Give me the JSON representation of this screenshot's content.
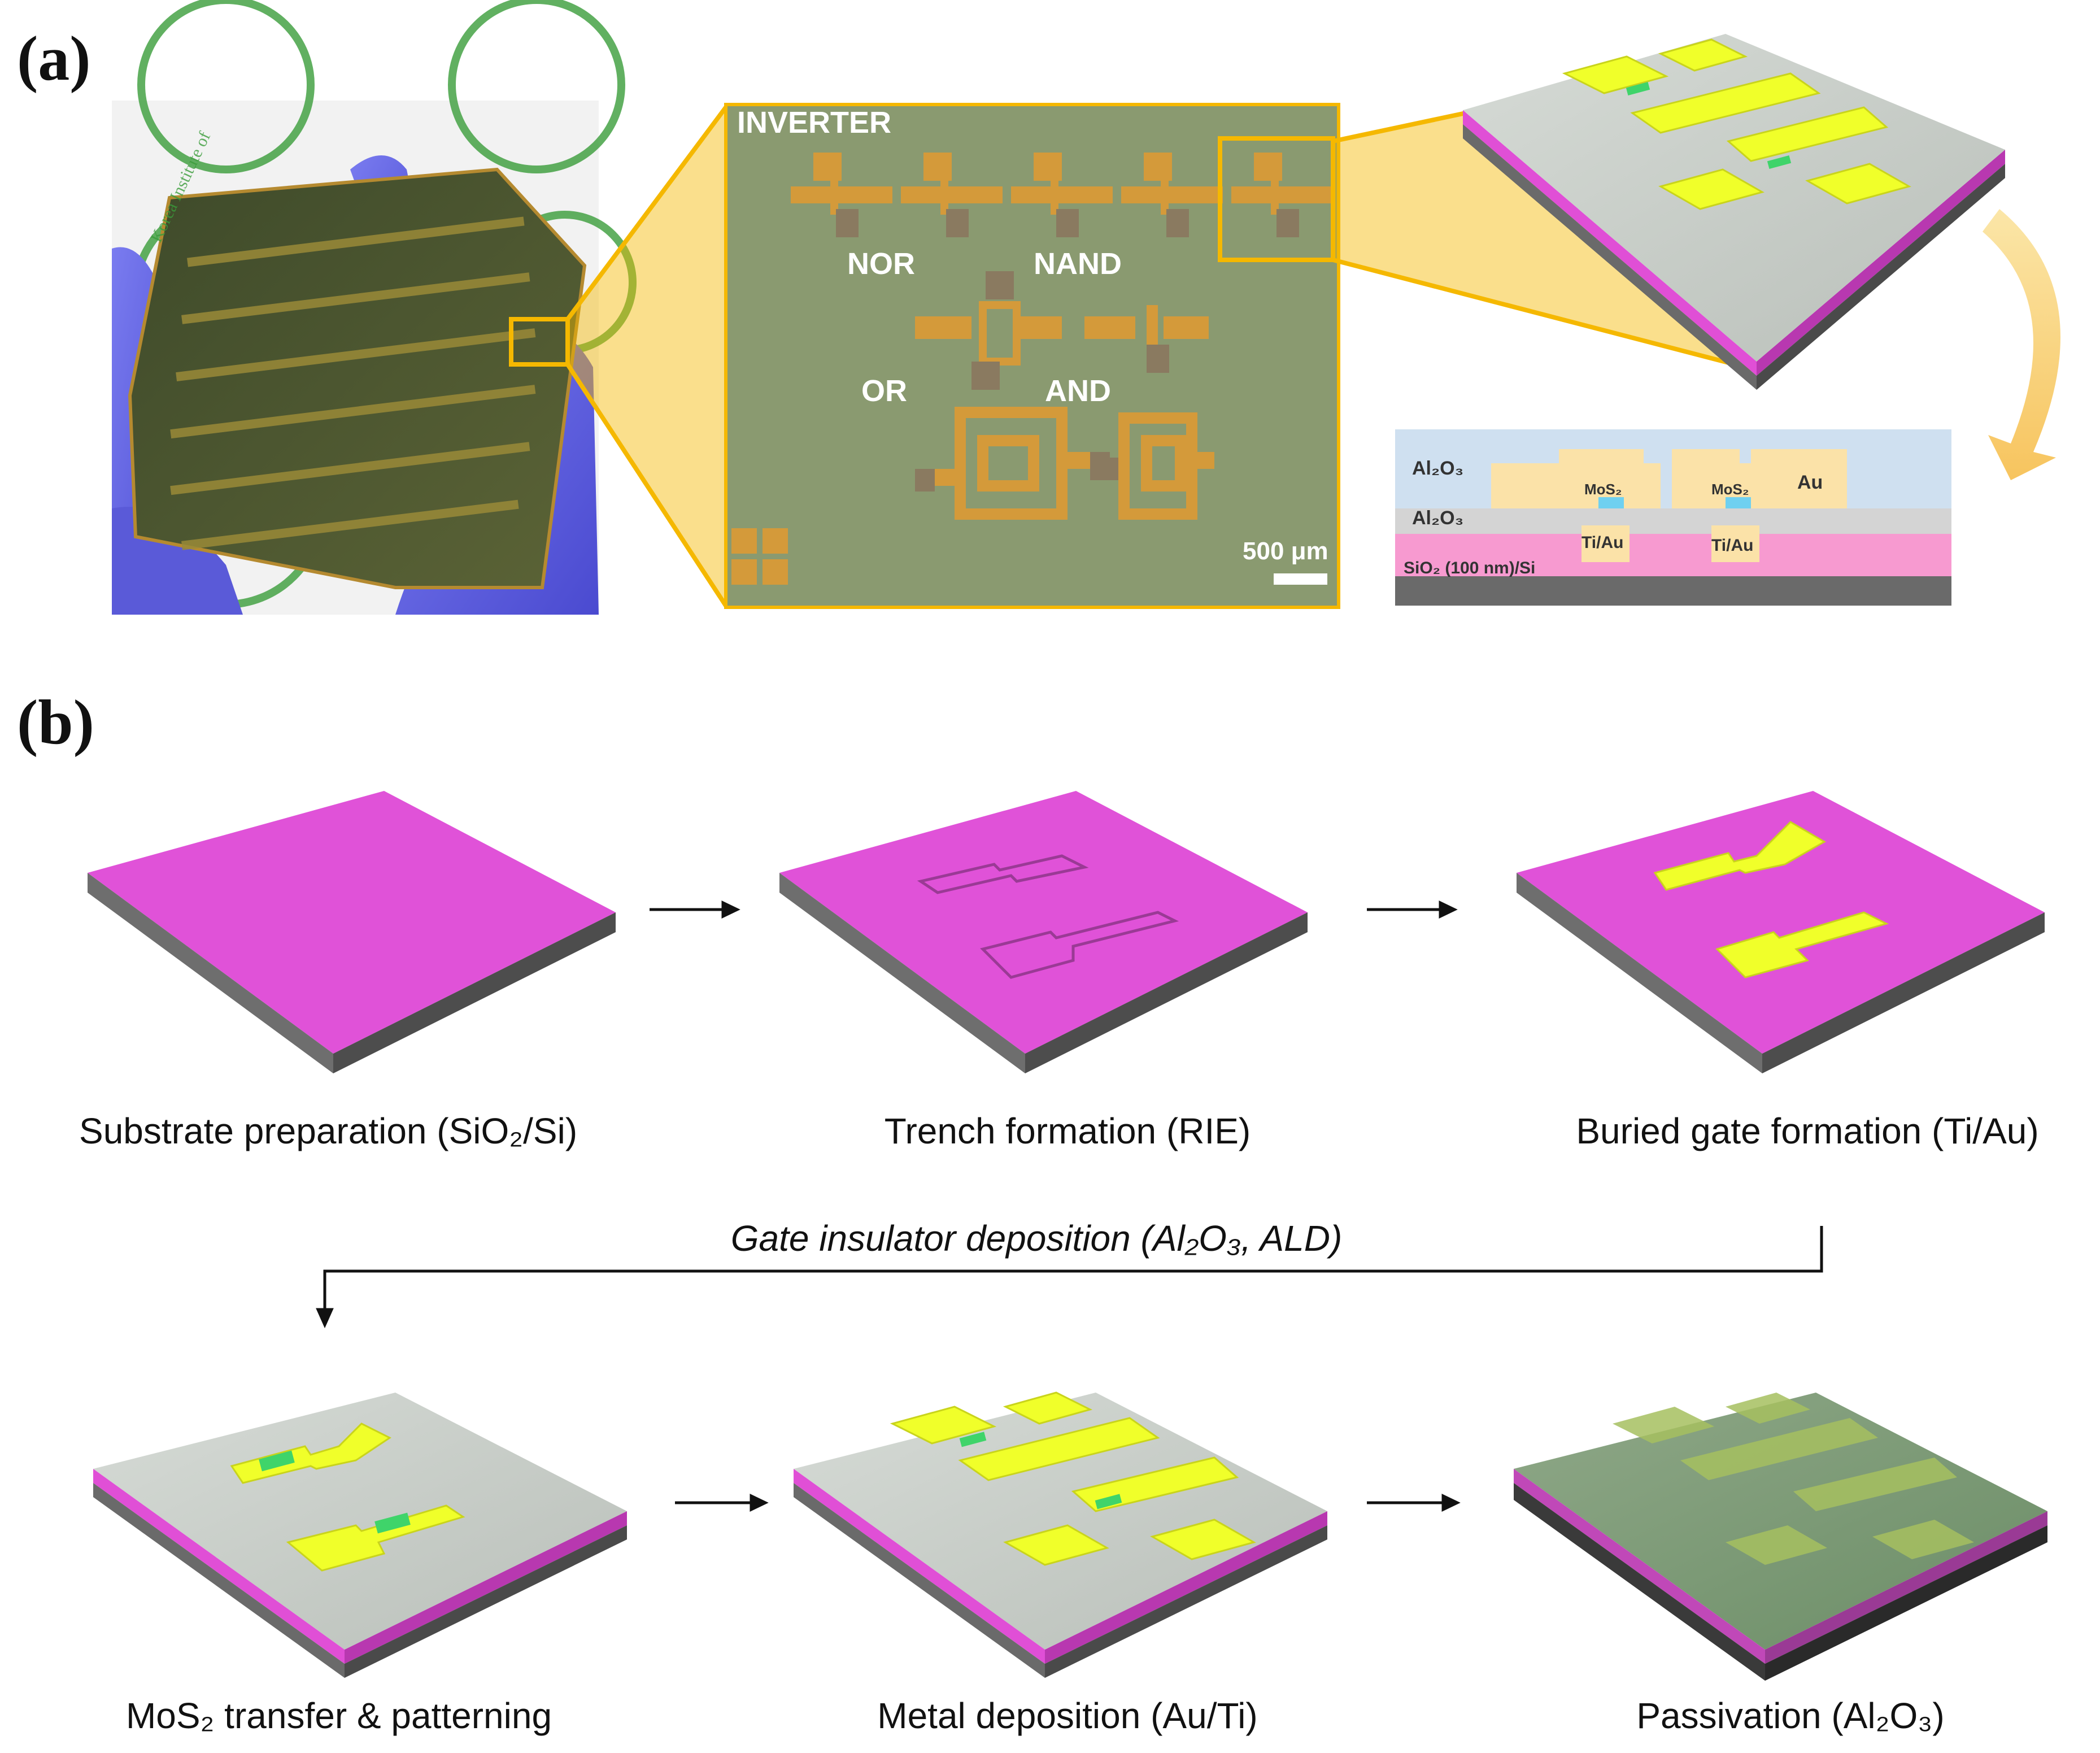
{
  "panel_labels": {
    "a": "(a)",
    "b": "(b)"
  },
  "micrograph": {
    "circuit_labels": {
      "inverter": "INVERTER",
      "nor": "NOR",
      "nand": "NAND",
      "or": "OR",
      "and": "AND"
    },
    "scale_bar": "500 μm"
  },
  "cross_section": {
    "al2o3_top": "Al₂O₃",
    "al2o3_mid": "Al₂O₃",
    "mos2_left": "MoS₂",
    "mos2_right": "MoS₂",
    "au": "Au",
    "tiau_left": "Ti/Au",
    "tiau_right": "Ti/Au",
    "substrate": "SiO₂ (100 nm)/Si"
  },
  "photo": {
    "logo_text": "Korea Institute of"
  },
  "process": {
    "steps": [
      "Substrate preparation (SiO₂/Si)",
      "Trench formation (RIE)",
      "Buried gate formation  (Ti/Au)",
      "MoS₂ transfer & patterning",
      "Metal deposition (Au/Ti)",
      "Passivation (Al₂O₃)"
    ],
    "intermediate_step": "Gate insulator deposition (Al₂O₃, ALD)"
  },
  "colors": {
    "magenta": "#e052d8",
    "gold": "#f0ff2a",
    "grey_slab": "#c8cdc8",
    "mos2_green": "#3fd46a",
    "micrograph_bg": "#8a9a70",
    "glove": "#6a6ae6",
    "callout": "#f5b800"
  }
}
